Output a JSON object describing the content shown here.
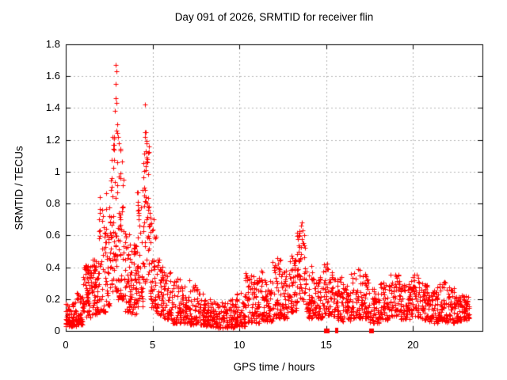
{
  "chart_data": {
    "type": "scatter",
    "title": "Day 091 of 2026, SRMTID for receiver flin",
    "xlabel": "GPS time / hours",
    "ylabel": "SRMTID / TECUs",
    "xlim": [
      0,
      24
    ],
    "ylim": [
      0,
      1.8
    ],
    "x_ticks": [
      0,
      5,
      10,
      15,
      20
    ],
    "x_tick_labels": [
      "0",
      "5",
      "10",
      "15",
      "20"
    ],
    "y_ticks": [
      0,
      0.2,
      0.4,
      0.6,
      0.8,
      1.0,
      1.2,
      1.4,
      1.6,
      1.8
    ],
    "y_tick_labels": [
      "0",
      "0.2",
      "0.4",
      "0.6",
      "0.8",
      "1",
      "1.2",
      "1.4",
      "1.6",
      "1.8"
    ],
    "grid": true,
    "legend": "none",
    "marker": "plus",
    "point_color": "#ff0000",
    "grid_color": "#b4b4b4",
    "frame_color": "#000000",
    "series_name": "SRMTID",
    "seed": 20260910,
    "density_bins_format": [
      "t_start_h",
      "t_end_h",
      "n_points",
      "y_min_TECU",
      "y_max_TECU",
      "low_bias_exponent"
    ],
    "density_bins": [
      [
        0.0,
        0.6,
        70,
        0.03,
        0.18,
        1.6
      ],
      [
        0.6,
        1.0,
        50,
        0.04,
        0.25,
        1.6
      ],
      [
        1.0,
        1.5,
        70,
        0.08,
        0.42,
        1.2
      ],
      [
        1.5,
        1.9,
        55,
        0.1,
        0.45,
        1.3
      ],
      [
        1.9,
        2.3,
        45,
        0.12,
        0.85,
        2.2
      ],
      [
        2.3,
        2.6,
        40,
        0.15,
        0.92,
        1.8
      ],
      [
        2.6,
        3.0,
        60,
        0.25,
        1.32,
        1.5
      ],
      [
        3.0,
        3.35,
        50,
        0.2,
        1.18,
        1.8
      ],
      [
        3.35,
        3.75,
        50,
        0.12,
        0.62,
        1.3
      ],
      [
        3.75,
        4.1,
        45,
        0.1,
        0.55,
        1.3
      ],
      [
        4.1,
        4.45,
        45,
        0.15,
        0.9,
        1.6
      ],
      [
        4.45,
        4.85,
        55,
        0.3,
        1.26,
        1.3
      ],
      [
        4.85,
        5.2,
        45,
        0.15,
        0.72,
        1.5
      ],
      [
        5.2,
        5.6,
        45,
        0.1,
        0.46,
        1.4
      ],
      [
        5.6,
        6.1,
        50,
        0.07,
        0.38,
        1.5
      ],
      [
        6.1,
        6.6,
        50,
        0.05,
        0.34,
        1.5
      ],
      [
        6.6,
        7.1,
        50,
        0.05,
        0.28,
        1.5
      ],
      [
        7.1,
        7.6,
        50,
        0.04,
        0.32,
        1.5
      ],
      [
        7.6,
        8.1,
        50,
        0.03,
        0.26,
        1.6
      ],
      [
        8.1,
        8.6,
        50,
        0.03,
        0.2,
        1.6
      ],
      [
        8.6,
        9.2,
        55,
        0.02,
        0.18,
        1.5
      ],
      [
        9.2,
        9.8,
        55,
        0.02,
        0.2,
        1.5
      ],
      [
        9.8,
        10.3,
        50,
        0.03,
        0.24,
        1.7
      ],
      [
        10.3,
        10.9,
        55,
        0.05,
        0.37,
        1.7
      ],
      [
        10.9,
        11.4,
        50,
        0.05,
        0.38,
        1.6
      ],
      [
        11.4,
        11.9,
        50,
        0.06,
        0.32,
        1.5
      ],
      [
        11.9,
        12.4,
        50,
        0.08,
        0.46,
        1.5
      ],
      [
        12.4,
        12.9,
        50,
        0.08,
        0.38,
        1.5
      ],
      [
        12.9,
        13.3,
        45,
        0.12,
        0.5,
        1.3
      ],
      [
        13.3,
        13.8,
        55,
        0.18,
        0.64,
        1.1
      ],
      [
        13.8,
        14.3,
        50,
        0.08,
        0.42,
        1.5
      ],
      [
        14.3,
        14.8,
        50,
        0.08,
        0.34,
        1.5
      ],
      [
        14.8,
        15.4,
        55,
        0.1,
        0.43,
        1.4
      ],
      [
        15.4,
        15.9,
        50,
        0.07,
        0.36,
        1.5
      ],
      [
        15.9,
        16.4,
        50,
        0.06,
        0.3,
        1.5
      ],
      [
        16.4,
        17.0,
        55,
        0.08,
        0.4,
        1.5
      ],
      [
        17.0,
        17.5,
        50,
        0.08,
        0.36,
        1.5
      ],
      [
        17.5,
        18.1,
        55,
        0.05,
        0.27,
        1.5
      ],
      [
        18.1,
        18.7,
        55,
        0.07,
        0.32,
        1.5
      ],
      [
        18.7,
        19.3,
        55,
        0.09,
        0.37,
        1.4
      ],
      [
        19.3,
        19.8,
        50,
        0.07,
        0.3,
        1.5
      ],
      [
        19.8,
        20.4,
        55,
        0.09,
        0.36,
        1.4
      ],
      [
        20.4,
        20.9,
        50,
        0.07,
        0.32,
        1.5
      ],
      [
        20.9,
        21.4,
        50,
        0.05,
        0.26,
        1.5
      ],
      [
        21.4,
        21.9,
        50,
        0.06,
        0.31,
        1.5
      ],
      [
        21.9,
        22.4,
        50,
        0.05,
        0.28,
        1.5
      ],
      [
        22.4,
        22.9,
        50,
        0.06,
        0.24,
        1.5
      ],
      [
        22.9,
        23.25,
        40,
        0.07,
        0.22,
        1.4
      ]
    ],
    "outlier_points": [
      [
        2.88,
        1.67
      ],
      [
        2.9,
        1.63
      ],
      [
        2.86,
        1.55
      ],
      [
        2.88,
        1.46
      ],
      [
        2.91,
        1.43
      ],
      [
        2.84,
        1.38
      ],
      [
        2.95,
        1.3
      ],
      [
        2.93,
        1.26
      ],
      [
        3.02,
        1.22
      ],
      [
        3.05,
        1.18
      ],
      [
        4.58,
        1.42
      ],
      [
        4.62,
        1.25
      ],
      [
        4.55,
        1.22
      ],
      [
        4.65,
        1.18
      ],
      [
        4.6,
        1.13
      ],
      [
        4.68,
        1.08
      ],
      [
        13.6,
        0.68
      ],
      [
        13.56,
        0.66
      ],
      [
        13.62,
        0.63
      ],
      [
        1.98,
        0.84
      ],
      [
        2.08,
        0.76
      ],
      [
        1.93,
        0.7
      ]
    ],
    "zero_square_markers_h": [
      15.02,
      15.07,
      17.62
    ],
    "zero_bar_markers_h": [
      15.58,
      15.64
    ]
  }
}
